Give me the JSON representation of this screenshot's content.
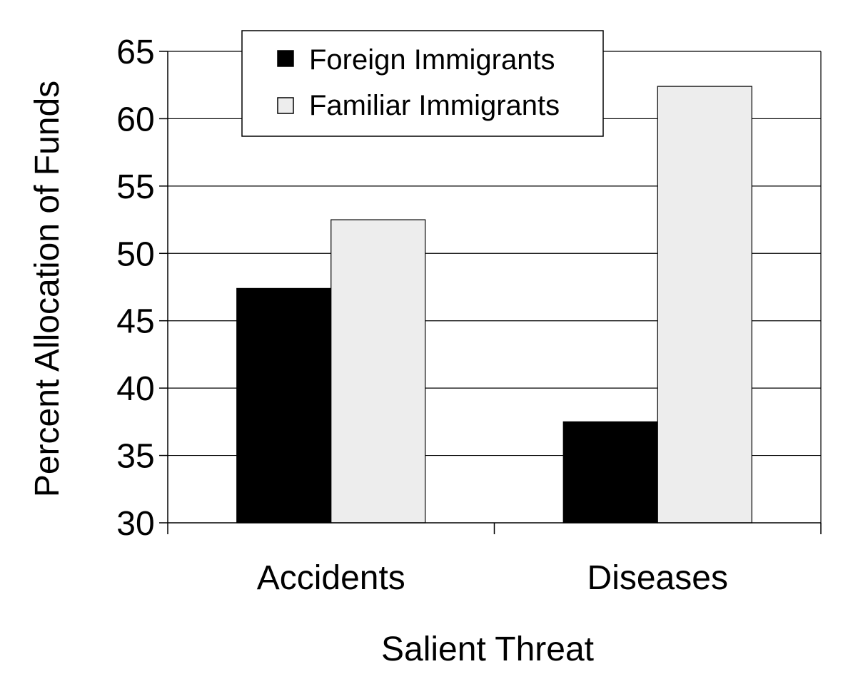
{
  "chart_data": {
    "type": "bar",
    "title": "",
    "xlabel": "Salient Threat",
    "ylabel": "Percent Allocation of Funds",
    "ylim": [
      30,
      65
    ],
    "yticks": [
      "30",
      "35",
      "40",
      "45",
      "50",
      "55",
      "60",
      "65"
    ],
    "categories": [
      "Accidents",
      "Diseases"
    ],
    "series": [
      {
        "name": "Foreign Immigrants",
        "values": [
          47.4,
          37.5
        ],
        "color": "#000000"
      },
      {
        "name": "Familiar Immigrants",
        "values": [
          52.5,
          62.4
        ],
        "color": "#ededed"
      }
    ],
    "grid": true,
    "legend_position": "top-left"
  }
}
